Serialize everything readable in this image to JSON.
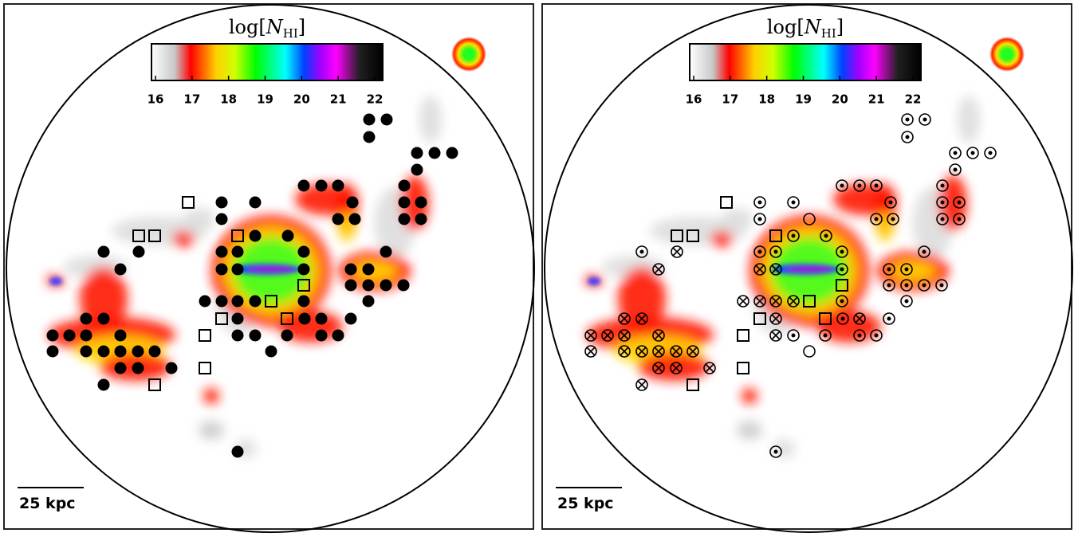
{
  "panels": [
    {
      "colorbar": {
        "prefix": "log[",
        "symbol": "N",
        "subscript": "HI",
        "suffix": "]",
        "lim": [
          16,
          22
        ],
        "ticks": [
          16,
          17,
          18,
          19,
          20,
          21,
          22
        ]
      },
      "scale_bar": "25 kpc"
    },
    {
      "colorbar": {
        "prefix": "log[",
        "symbol": "N",
        "subscript": "HI",
        "suffix": "]",
        "lim": [
          16,
          22
        ],
        "ticks": [
          16,
          17,
          18,
          19,
          20,
          21,
          22
        ]
      },
      "scale_bar": "25 kpc"
    }
  ]
}
